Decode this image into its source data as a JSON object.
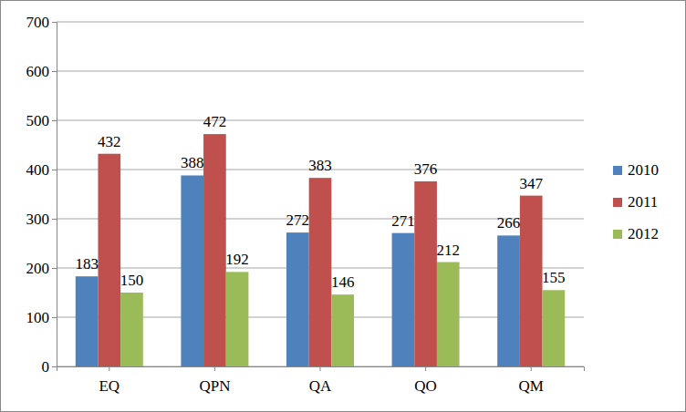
{
  "chart_data": {
    "type": "bar",
    "categories": [
      "EQ",
      "QPN",
      "QA",
      "QO",
      "QM"
    ],
    "series": [
      {
        "name": "2010",
        "color": "#4f81bd",
        "values": [
          183,
          388,
          272,
          271,
          266
        ]
      },
      {
        "name": "2011",
        "color": "#c0504d",
        "values": [
          432,
          472,
          383,
          376,
          347
        ]
      },
      {
        "name": "2012",
        "color": "#9bbb59",
        "values": [
          150,
          192,
          146,
          212,
          155
        ]
      }
    ],
    "ylim": [
      0,
      700
    ],
    "yticks": [
      0,
      100,
      200,
      300,
      400,
      500,
      600,
      700
    ],
    "grid": true,
    "legend": "right",
    "data_labels": true
  }
}
